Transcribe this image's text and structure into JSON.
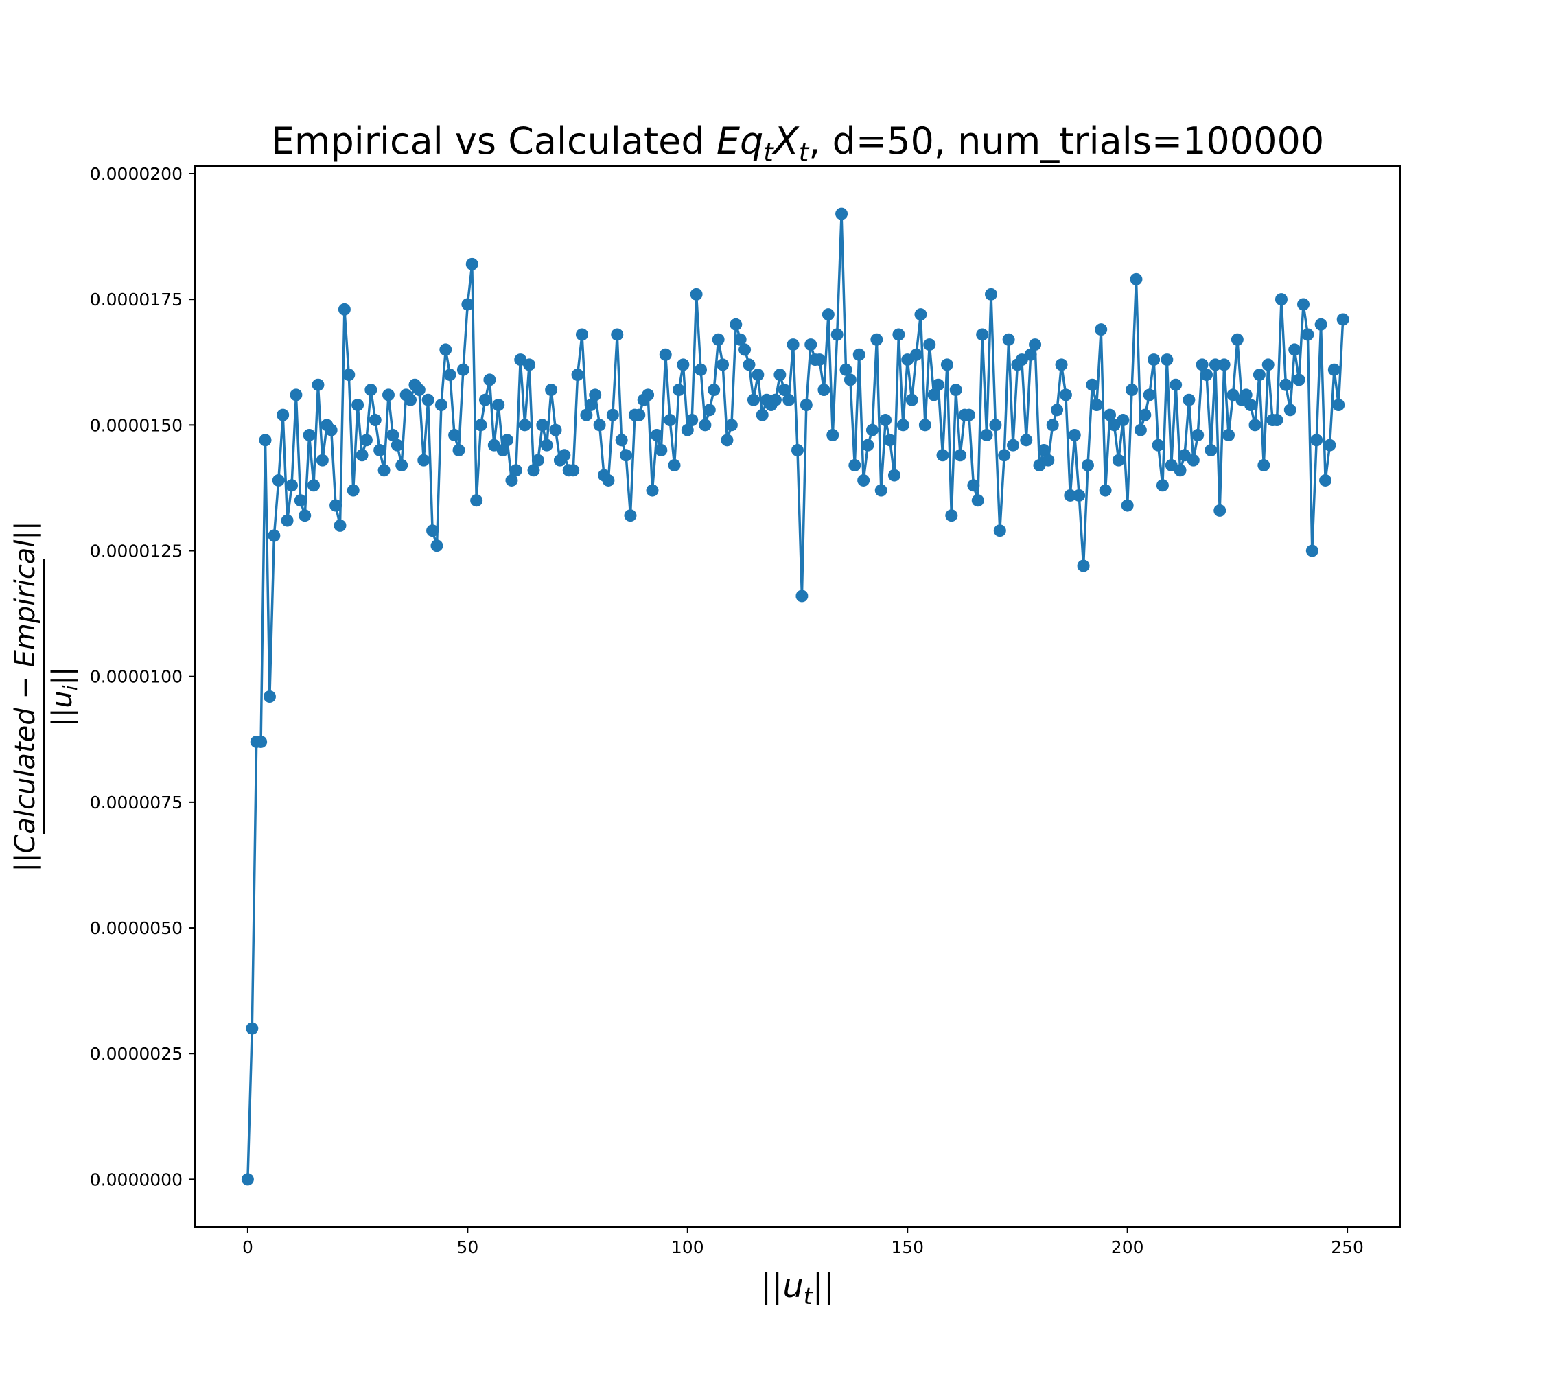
{
  "chart_data": {
    "type": "line",
    "title": "Empirical vs Calculated EqtXt, d=50, num_trials=100000",
    "title_parts": {
      "prefix": "Empirical vs Calculated ",
      "math": [
        "E",
        "q",
        "t",
        "X",
        "t"
      ],
      "suffix": ", d=50, num_trials=100000"
    },
    "xlabel": "||ut||",
    "xlabel_parts": {
      "outer_left": "||",
      "var": "u",
      "sub": "t",
      "outer_right": "||"
    },
    "ylabel": "||Calculated − Empirical|| / ||ui||",
    "ylabel_parts": {
      "numerator": {
        "outer_left": "||",
        "text": "Calculated − Empirical",
        "outer_right": "||"
      },
      "denominator": {
        "outer_left": "||",
        "var": "u",
        "sub": "i",
        "outer_right": "||"
      }
    },
    "xlim": [
      -12,
      262
    ],
    "ylim": [
      -9.5e-07,
      2.015e-05
    ],
    "xticks": [
      0,
      50,
      100,
      150,
      200,
      250
    ],
    "xtick_labels": [
      "0",
      "50",
      "100",
      "150",
      "200",
      "250"
    ],
    "yticks": [
      0,
      2.5e-06,
      5e-06,
      7.5e-06,
      1e-05,
      1.25e-05,
      1.5e-05,
      1.75e-05,
      2e-05
    ],
    "ytick_labels": [
      "0.0000000",
      "0.0000025",
      "0.0000050",
      "0.0000075",
      "0.0000100",
      "0.0000125",
      "0.0000150",
      "0.0000175",
      "0.0000200"
    ],
    "grid": false,
    "legend": "none",
    "series": [
      {
        "color": "#1f77b4",
        "marker": "circle",
        "x": [
          0,
          1,
          2,
          3,
          4,
          5,
          6,
          7,
          8,
          9,
          10,
          11,
          12,
          13,
          14,
          15,
          16,
          17,
          18,
          19,
          20,
          21,
          22,
          23,
          24,
          25,
          26,
          27,
          28,
          29,
          30,
          31,
          32,
          33,
          34,
          35,
          36,
          37,
          38,
          39,
          40,
          41,
          42,
          43,
          44,
          45,
          46,
          47,
          48,
          49,
          50,
          51,
          52,
          53,
          54,
          55,
          56,
          57,
          58,
          59,
          60,
          61,
          62,
          63,
          64,
          65,
          66,
          67,
          68,
          69,
          70,
          71,
          72,
          73,
          74,
          75,
          76,
          77,
          78,
          79,
          80,
          81,
          82,
          83,
          84,
          85,
          86,
          87,
          88,
          89,
          90,
          91,
          92,
          93,
          94,
          95,
          96,
          97,
          98,
          99,
          100,
          101,
          102,
          103,
          104,
          105,
          106,
          107,
          108,
          109,
          110,
          111,
          112,
          113,
          114,
          115,
          116,
          117,
          118,
          119,
          120,
          121,
          122,
          123,
          124,
          125,
          126,
          127,
          128,
          129,
          130,
          131,
          132,
          133,
          134,
          135,
          136,
          137,
          138,
          139,
          140,
          141,
          142,
          143,
          144,
          145,
          146,
          147,
          148,
          149,
          150,
          151,
          152,
          153,
          154,
          155,
          156,
          157,
          158,
          159,
          160,
          161,
          162,
          163,
          164,
          165,
          166,
          167,
          168,
          169,
          170,
          171,
          172,
          173,
          174,
          175,
          176,
          177,
          178,
          179,
          180,
          181,
          182,
          183,
          184,
          185,
          186,
          187,
          188,
          189,
          190,
          191,
          192,
          193,
          194,
          195,
          196,
          197,
          198,
          199,
          200,
          201,
          202,
          203,
          204,
          205,
          206,
          207,
          208,
          209,
          210,
          211,
          212,
          213,
          214,
          215,
          216,
          217,
          218,
          219,
          220,
          221,
          222,
          223,
          224,
          225,
          226,
          227,
          228,
          229,
          230,
          231,
          232,
          233,
          234,
          235,
          236,
          237,
          238,
          239,
          240,
          241,
          242,
          243,
          244,
          245,
          246,
          247,
          248,
          249
        ],
        "y": [
          0.0,
          3e-06,
          8.7e-06,
          8.7e-06,
          1.47e-05,
          9.6e-06,
          1.28e-05,
          1.39e-05,
          1.52e-05,
          1.31e-05,
          1.38e-05,
          1.56e-05,
          1.35e-05,
          1.32e-05,
          1.48e-05,
          1.38e-05,
          1.58e-05,
          1.43e-05,
          1.5e-05,
          1.49e-05,
          1.34e-05,
          1.3e-05,
          1.73e-05,
          1.6e-05,
          1.37e-05,
          1.54e-05,
          1.44e-05,
          1.47e-05,
          1.57e-05,
          1.51e-05,
          1.45e-05,
          1.41e-05,
          1.56e-05,
          1.48e-05,
          1.46e-05,
          1.42e-05,
          1.56e-05,
          1.55e-05,
          1.58e-05,
          1.57e-05,
          1.43e-05,
          1.55e-05,
          1.29e-05,
          1.26e-05,
          1.54e-05,
          1.65e-05,
          1.6e-05,
          1.48e-05,
          1.45e-05,
          1.61e-05,
          1.74e-05,
          1.82e-05,
          1.35e-05,
          1.5e-05,
          1.55e-05,
          1.59e-05,
          1.46e-05,
          1.54e-05,
          1.45e-05,
          1.47e-05,
          1.39e-05,
          1.41e-05,
          1.63e-05,
          1.5e-05,
          1.62e-05,
          1.41e-05,
          1.43e-05,
          1.5e-05,
          1.46e-05,
          1.57e-05,
          1.49e-05,
          1.43e-05,
          1.44e-05,
          1.41e-05,
          1.41e-05,
          1.6e-05,
          1.68e-05,
          1.52e-05,
          1.54e-05,
          1.56e-05,
          1.5e-05,
          1.4e-05,
          1.39e-05,
          1.52e-05,
          1.68e-05,
          1.47e-05,
          1.44e-05,
          1.32e-05,
          1.52e-05,
          1.52e-05,
          1.55e-05,
          1.56e-05,
          1.37e-05,
          1.48e-05,
          1.45e-05,
          1.64e-05,
          1.51e-05,
          1.42e-05,
          1.57e-05,
          1.62e-05,
          1.49e-05,
          1.51e-05,
          1.76e-05,
          1.61e-05,
          1.5e-05,
          1.53e-05,
          1.57e-05,
          1.67e-05,
          1.62e-05,
          1.47e-05,
          1.5e-05,
          1.7e-05,
          1.67e-05,
          1.65e-05,
          1.62e-05,
          1.55e-05,
          1.6e-05,
          1.52e-05,
          1.55e-05,
          1.54e-05,
          1.55e-05,
          1.6e-05,
          1.57e-05,
          1.55e-05,
          1.66e-05,
          1.45e-05,
          1.16e-05,
          1.54e-05,
          1.66e-05,
          1.63e-05,
          1.63e-05,
          1.57e-05,
          1.72e-05,
          1.48e-05,
          1.68e-05,
          1.92e-05,
          1.61e-05,
          1.59e-05,
          1.42e-05,
          1.64e-05,
          1.39e-05,
          1.46e-05,
          1.49e-05,
          1.67e-05,
          1.37e-05,
          1.51e-05,
          1.47e-05,
          1.4e-05,
          1.68e-05,
          1.5e-05,
          1.63e-05,
          1.55e-05,
          1.64e-05,
          1.72e-05,
          1.5e-05,
          1.66e-05,
          1.56e-05,
          1.58e-05,
          1.44e-05,
          1.62e-05,
          1.32e-05,
          1.57e-05,
          1.44e-05,
          1.52e-05,
          1.52e-05,
          1.38e-05,
          1.35e-05,
          1.68e-05,
          1.48e-05,
          1.76e-05,
          1.5e-05,
          1.29e-05,
          1.44e-05,
          1.67e-05,
          1.46e-05,
          1.62e-05,
          1.63e-05,
          1.47e-05,
          1.64e-05,
          1.66e-05,
          1.42e-05,
          1.45e-05,
          1.43e-05,
          1.5e-05,
          1.53e-05,
          1.62e-05,
          1.56e-05,
          1.36e-05,
          1.48e-05,
          1.36e-05,
          1.22e-05,
          1.42e-05,
          1.58e-05,
          1.54e-05,
          1.69e-05,
          1.37e-05,
          1.52e-05,
          1.5e-05,
          1.43e-05,
          1.51e-05,
          1.34e-05,
          1.57e-05,
          1.79e-05,
          1.49e-05,
          1.52e-05,
          1.56e-05,
          1.63e-05,
          1.46e-05,
          1.38e-05,
          1.63e-05,
          1.42e-05,
          1.58e-05,
          1.41e-05,
          1.44e-05,
          1.55e-05,
          1.43e-05,
          1.48e-05,
          1.62e-05,
          1.6e-05,
          1.45e-05,
          1.62e-05,
          1.33e-05,
          1.62e-05,
          1.48e-05,
          1.56e-05,
          1.67e-05,
          1.55e-05,
          1.56e-05,
          1.54e-05,
          1.5e-05,
          1.6e-05,
          1.42e-05,
          1.62e-05,
          1.51e-05,
          1.51e-05,
          1.75e-05,
          1.58e-05,
          1.53e-05,
          1.65e-05,
          1.59e-05,
          1.74e-05,
          1.68e-05,
          1.25e-05,
          1.47e-05,
          1.7e-05,
          1.39e-05,
          1.46e-05,
          1.61e-05,
          1.54e-05,
          1.71e-05
        ]
      }
    ]
  }
}
